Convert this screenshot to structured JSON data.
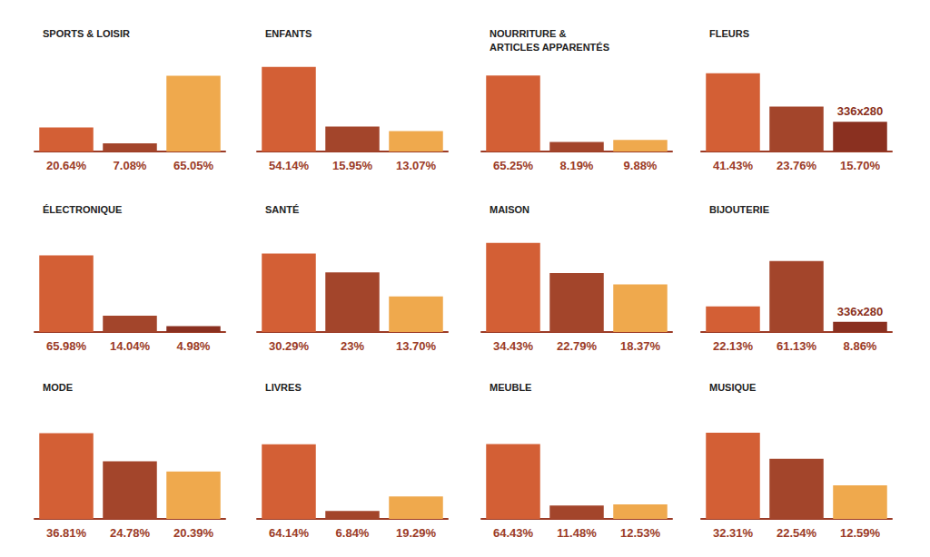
{
  "chart_data": [
    {
      "type": "bar",
      "title": "SPORTS & LOISIR",
      "categories": [
        null,
        null,
        null
      ],
      "values": [
        20.64,
        7.08,
        65.05
      ],
      "value_labels": [
        "20.64%",
        "7.08%",
        "65.05%"
      ],
      "colors": [
        "#d35f35",
        "#a3452b",
        "#efa94d"
      ],
      "ylim": [
        0,
        78
      ],
      "tick_labels": false,
      "data_labels": true,
      "grid": false
    },
    {
      "type": "bar",
      "title": "ENFANTS",
      "categories": [
        null,
        null,
        null
      ],
      "values": [
        54.14,
        15.95,
        13.07
      ],
      "value_labels": [
        "54.14%",
        "15.95%",
        "13.07%"
      ],
      "colors": [
        "#d35f35",
        "#a3452b",
        "#efa94d"
      ],
      "ylim": [
        0,
        58
      ],
      "tick_labels": false,
      "data_labels": true,
      "grid": false
    },
    {
      "type": "bar",
      "title": "NOURRITURE &\nARTICLES APPARENTÉS",
      "categories": [
        null,
        null,
        null
      ],
      "values": [
        65.25,
        8.19,
        9.88
      ],
      "value_labels": [
        "65.25%",
        "8.19%",
        "9.88%"
      ],
      "colors": [
        "#d35f35",
        "#a3452b",
        "#efa94d"
      ],
      "ylim": [
        0,
        78
      ],
      "tick_labels": false,
      "data_labels": true,
      "grid": false
    },
    {
      "type": "bar",
      "title": "FLEURS",
      "categories": [
        null,
        null,
        null
      ],
      "values": [
        41.43,
        23.76,
        15.7
      ],
      "value_labels": [
        "41.43%",
        "23.76%",
        "15.70%"
      ],
      "colors": [
        "#d35f35",
        "#a3452b",
        "#8a3020"
      ],
      "ylim": [
        0,
        48
      ],
      "tick_labels": false,
      "data_labels": true,
      "grid": false,
      "annotations": [
        {
          "text": "336x280",
          "bar": 2
        }
      ]
    },
    {
      "type": "bar",
      "title": "ÉLECTRONIQUE",
      "categories": [
        null,
        null,
        null
      ],
      "values": [
        65.98,
        14.04,
        4.98
      ],
      "value_labels": [
        "65.98%",
        "14.04%",
        "4.98%"
      ],
      "colors": [
        "#d35f35",
        "#a3452b",
        "#8a3020"
      ],
      "ylim": [
        0,
        78
      ],
      "tick_labels": false,
      "data_labels": true,
      "grid": false
    },
    {
      "type": "bar",
      "title": "SANTÉ",
      "categories": [
        null,
        null,
        null
      ],
      "values": [
        30.29,
        23,
        13.7
      ],
      "value_labels": [
        "30.29%",
        "23%",
        "13.70%"
      ],
      "colors": [
        "#d35f35",
        "#a3452b",
        "#efa94d"
      ],
      "ylim": [
        0,
        35
      ],
      "tick_labels": false,
      "data_labels": true,
      "grid": false
    },
    {
      "type": "bar",
      "title": "MAISON",
      "categories": [
        null,
        null,
        null
      ],
      "values": [
        34.43,
        22.79,
        18.37
      ],
      "value_labels": [
        "34.43%",
        "22.79%",
        "18.37%"
      ],
      "colors": [
        "#d35f35",
        "#a3452b",
        "#efa94d"
      ],
      "ylim": [
        0,
        35
      ],
      "tick_labels": false,
      "data_labels": true,
      "grid": false
    },
    {
      "type": "bar",
      "title": "BIJOUTERIE",
      "categories": [
        null,
        null,
        null
      ],
      "values": [
        22.13,
        61.13,
        8.86
      ],
      "value_labels": [
        "22.13%",
        "61.13%",
        "8.86%"
      ],
      "colors": [
        "#d35f35",
        "#a3452b",
        "#8a3020"
      ],
      "ylim": [
        0,
        78
      ],
      "tick_labels": false,
      "data_labels": true,
      "grid": false,
      "annotations": [
        {
          "text": "336x280",
          "bar": 2
        }
      ]
    },
    {
      "type": "bar",
      "title": "MODE",
      "categories": [
        null,
        null,
        null
      ],
      "values": [
        36.81,
        24.78,
        20.39
      ],
      "value_labels": [
        "36.81%",
        "24.78%",
        "20.39%"
      ],
      "colors": [
        "#d35f35",
        "#a3452b",
        "#efa94d"
      ],
      "ylim": [
        0,
        39
      ],
      "tick_labels": false,
      "data_labels": true,
      "grid": false
    },
    {
      "type": "bar",
      "title": "LIVRES",
      "categories": [
        null,
        null,
        null
      ],
      "values": [
        64.14,
        6.84,
        19.29
      ],
      "value_labels": [
        "64.14%",
        "6.84%",
        "19.29%"
      ],
      "colors": [
        "#d35f35",
        "#a3452b",
        "#efa94d"
      ],
      "ylim": [
        0,
        78
      ],
      "tick_labels": false,
      "data_labels": true,
      "grid": false
    },
    {
      "type": "bar",
      "title": "MEUBLE",
      "categories": [
        null,
        null,
        null
      ],
      "values": [
        64.43,
        11.48,
        12.53
      ],
      "value_labels": [
        "64.43%",
        "11.48%",
        "12.53%"
      ],
      "colors": [
        "#d35f35",
        "#a3452b",
        "#efa94d"
      ],
      "ylim": [
        0,
        78
      ],
      "tick_labels": false,
      "data_labels": true,
      "grid": false
    },
    {
      "type": "bar",
      "title": "MUSIQUE",
      "categories": [
        null,
        null,
        null
      ],
      "values": [
        32.31,
        22.54,
        12.59
      ],
      "value_labels": [
        "32.31%",
        "22.54%",
        "12.59%"
      ],
      "colors": [
        "#d35f35",
        "#a3452b",
        "#efa94d"
      ],
      "ylim": [
        0,
        34
      ],
      "tick_labels": false,
      "data_labels": true,
      "grid": false
    }
  ]
}
